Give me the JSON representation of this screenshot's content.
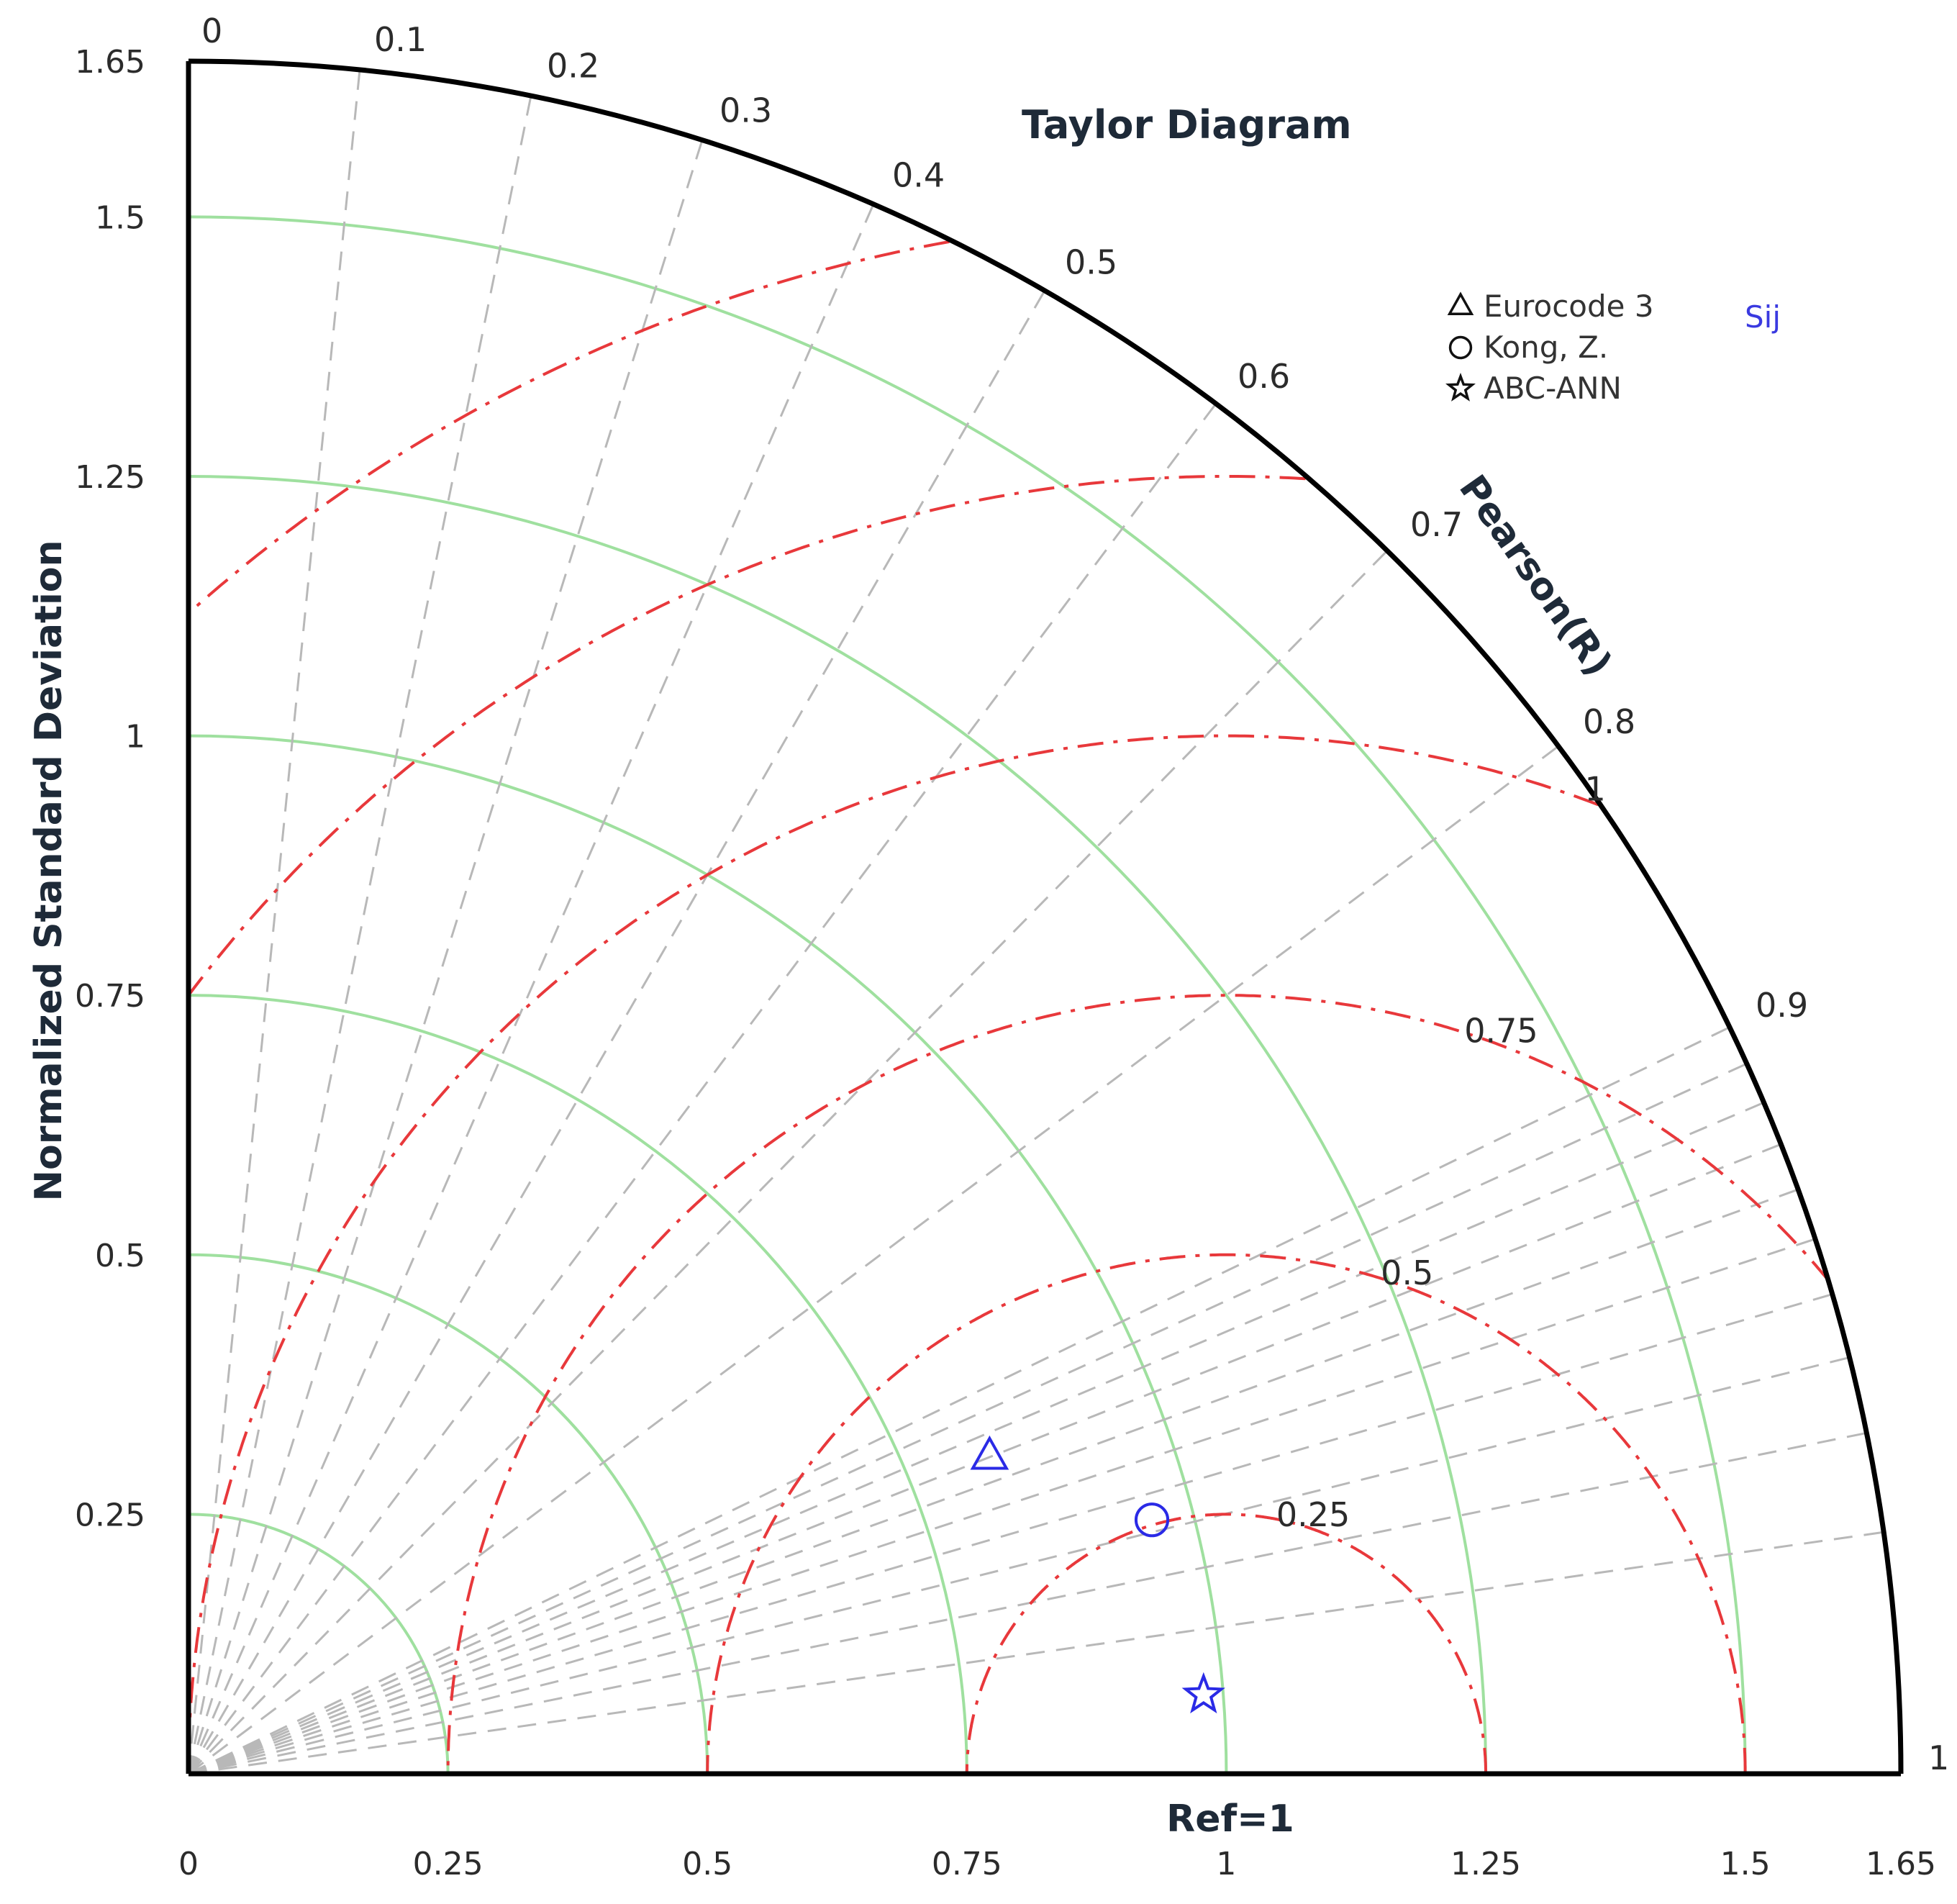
{
  "chart_data": {
    "type": "taylor",
    "title": "Taylor Diagram",
    "ylabel": "Normalized Standard Deviation",
    "xlabel": "Ref=1",
    "correlation_label": "Pearson(R)",
    "annotation": "Sij",
    "std_range": [
      0,
      1.65
    ],
    "std_ticks": [
      "0",
      "0.25",
      "0.5",
      "0.75",
      "1",
      "1.25",
      "1.5",
      "1.65"
    ],
    "correlation_ticks": [
      "0",
      "0.1",
      "0.2",
      "0.3",
      "0.4",
      "0.5",
      "0.6",
      "0.7",
      "0.8",
      "0.9",
      "1"
    ],
    "rms_labels": [
      "0.25",
      "0.5",
      "0.75",
      "1"
    ],
    "reference_std": 1,
    "legend_position": "top-right",
    "series": [
      {
        "name": "Eurocode 3",
        "marker": "triangle",
        "std": 0.83,
        "correlation": 0.93
      },
      {
        "name": "Kong, Z.",
        "marker": "circle",
        "std": 0.96,
        "correlation": 0.967
      },
      {
        "name": "ABC-ANN",
        "marker": "star",
        "std": 0.981,
        "correlation": 0.997
      }
    ],
    "colors": {
      "markers": "#2a2ae6",
      "std_arcs": "#9fe09f",
      "rms_arcs": "#e8383b",
      "correlation_rays": "#b8b8b8",
      "frame": "#000000"
    }
  }
}
